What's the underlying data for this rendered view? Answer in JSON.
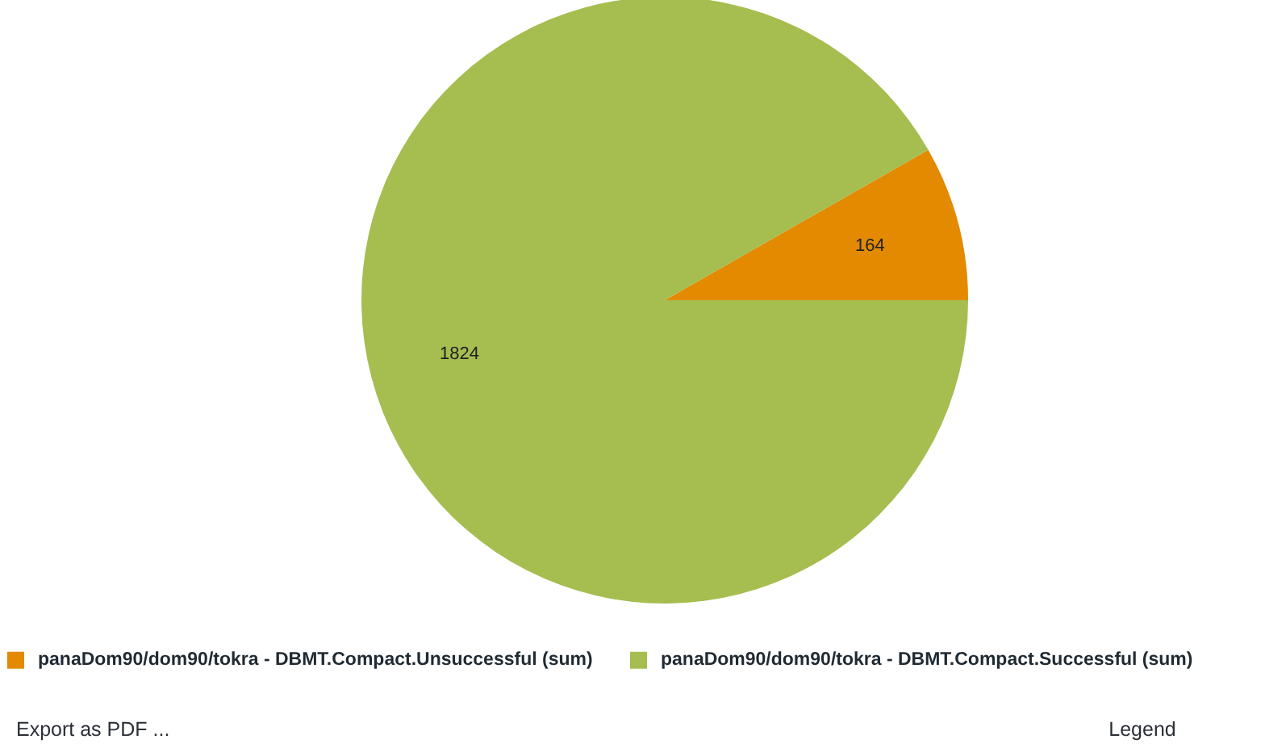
{
  "chart_data": {
    "type": "pie",
    "categories": [
      "panaDom90/dom90/tokra - DBMT.Compact.Unsuccessful (sum)",
      "panaDom90/dom90/tokra - DBMT.Compact.Successful (sum)"
    ],
    "values": [
      164,
      1824
    ],
    "colors": [
      "#e38a00",
      "#a6bd50"
    ],
    "data_labels": true,
    "legend": "bottom",
    "annotations": [
      "Export as PDF ...",
      "Legend"
    ]
  }
}
